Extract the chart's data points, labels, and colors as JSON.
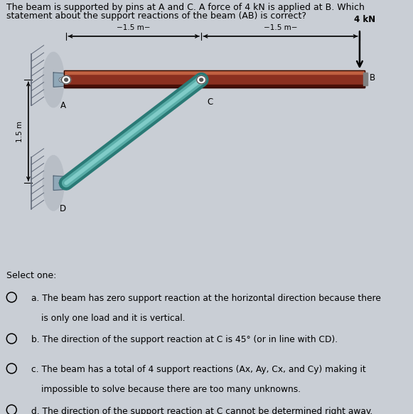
{
  "bg_color": "#c9ced5",
  "diagram_bg": "#ffffff",
  "title_text_line1": "The beam is supported by pins at A and C. A force of 4 kN is applied at B. Which",
  "title_text_line2": "statement about the support reactions of the beam (AB) is correct?",
  "title_fontsize": 9.0,
  "beam_color": "#8B3020",
  "beam_highlight": "#B04030",
  "beam_shadow": "#4A1008",
  "beam_top_light": "#C06040",
  "link_color_main": "#5AADA8",
  "link_color_light": "#80CCC8",
  "link_color_dark": "#2A7A76",
  "wall_color": "#b0b8c0",
  "wall_edge": "#606878",
  "pin_bracket_color": "#90a8b8",
  "pin_bracket_dark": "#506070",
  "text_color": "#000000",
  "select_text": "Select one:",
  "options": [
    [
      "a.",
      "The beam has zero support reaction at the horizontal direction because there",
      "is only one load and it is vertical."
    ],
    [
      "b.",
      "The direction of the support reaction at C is 45° (or in line with CD)."
    ],
    [
      "c.",
      "The beam has a total of 4 support reactions (Ax, Ay, Cx, and Cy) making it",
      "impossible to solve because there are too many unknowns."
    ],
    [
      "d.",
      "The direction of the support reaction at C cannot be determined right away."
    ]
  ]
}
